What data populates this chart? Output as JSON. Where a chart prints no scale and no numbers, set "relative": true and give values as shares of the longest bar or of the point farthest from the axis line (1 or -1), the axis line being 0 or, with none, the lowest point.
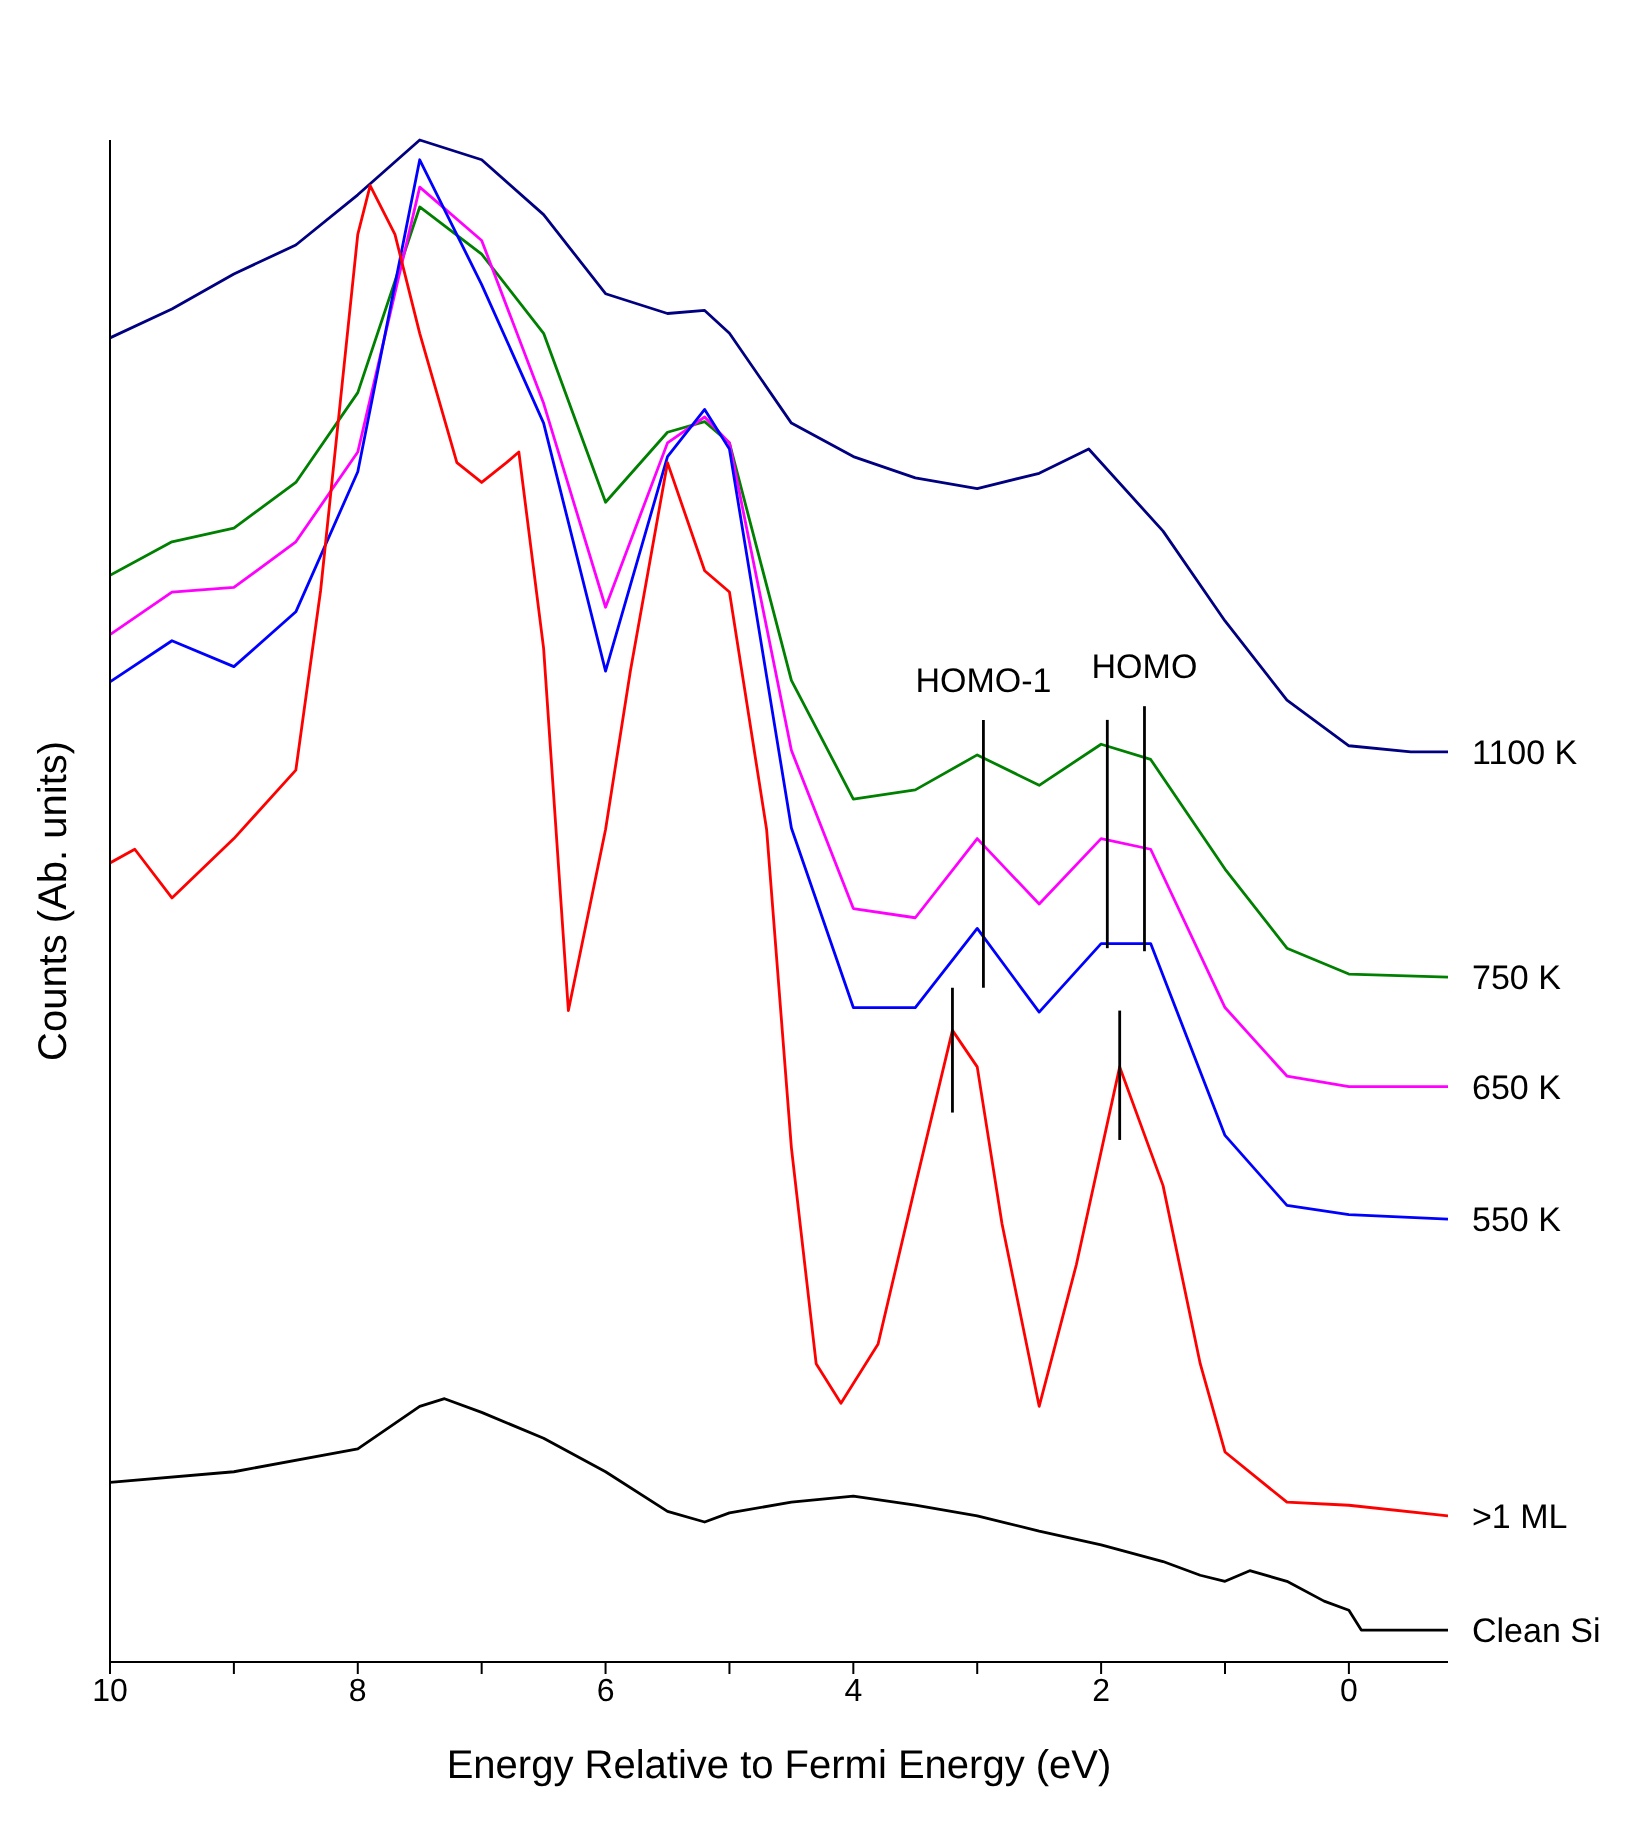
{
  "chart_data": {
    "type": "line",
    "relative": true,
    "xlabel": "Energy Relative to Fermi Energy (eV)",
    "ylabel": "Counts (Ab. units)",
    "xlim": [
      10,
      -0.8
    ],
    "xticks": [
      10,
      {
        "value": 9,
        "label": null
      },
      8,
      {
        "value": 7,
        "label": null
      },
      6,
      {
        "value": 5,
        "label": null
      },
      4,
      {
        "value": 3,
        "label": null
      },
      2,
      {
        "value": 1,
        "label": null
      },
      0
    ],
    "grid": false,
    "legend": false,
    "marker": "none",
    "line_style": "solid",
    "tick_labels": "x",
    "annotations": [
      {
        "text": "HOMO-1",
        "x": 2.95,
        "y": 0.619
      },
      {
        "text": "HOMO",
        "x": 1.65,
        "y": 0.628
      }
    ],
    "series": [
      {
        "name": "1100 K",
        "color": "#000080",
        "x": [
          10,
          9.5,
          9,
          8.5,
          8,
          7.5,
          7,
          6.5,
          6,
          5.5,
          5.2,
          5,
          4.5,
          4,
          3.5,
          3,
          2.5,
          2.1,
          1.5,
          1,
          0.5,
          0,
          -0.5,
          -0.8
        ],
        "values": [
          0.87,
          0.889,
          0.912,
          0.931,
          0.964,
          1.0,
          0.987,
          0.951,
          0.899,
          0.886,
          0.888,
          0.873,
          0.814,
          0.792,
          0.778,
          0.771,
          0.781,
          0.797,
          0.743,
          0.684,
          0.632,
          0.602,
          0.598,
          0.598
        ]
      },
      {
        "name": "750 K",
        "color": "#008000",
        "x": [
          10,
          9.5,
          9,
          8.5,
          8,
          7.5,
          7,
          6.5,
          6,
          5.5,
          5.2,
          5,
          4.5,
          4,
          3.5,
          3,
          2.5,
          2,
          1.6,
          1,
          0.5,
          0,
          -0.8
        ],
        "values": [
          0.714,
          0.736,
          0.745,
          0.775,
          0.834,
          0.956,
          0.925,
          0.873,
          0.762,
          0.808,
          0.815,
          0.801,
          0.645,
          0.567,
          0.573,
          0.596,
          0.576,
          0.603,
          0.593,
          0.521,
          0.469,
          0.452,
          0.45
        ]
      },
      {
        "name": "650 K",
        "color": "#ff00ff",
        "x": [
          10,
          9.5,
          9,
          8.5,
          8,
          7.5,
          7,
          6.5,
          6,
          5.5,
          5.2,
          5,
          4.5,
          4,
          3.5,
          3,
          2.5,
          2,
          1.6,
          1,
          0.5,
          0,
          -0.8
        ],
        "values": [
          0.675,
          0.703,
          0.706,
          0.736,
          0.795,
          0.969,
          0.934,
          0.827,
          0.693,
          0.801,
          0.818,
          0.801,
          0.599,
          0.495,
          0.489,
          0.541,
          0.498,
          0.541,
          0.534,
          0.43,
          0.385,
          0.378,
          0.378
        ]
      },
      {
        "name": "550 K",
        "color": "#0000ff",
        "x": [
          10,
          9.5,
          9,
          8.5,
          8,
          7.5,
          7,
          6.5,
          6,
          5.5,
          5.2,
          5,
          4.5,
          4,
          3.5,
          3,
          2.5,
          2,
          1.6,
          1,
          0.5,
          0,
          -0.8
        ],
        "values": [
          0.644,
          0.671,
          0.654,
          0.69,
          0.782,
          0.987,
          0.905,
          0.814,
          0.651,
          0.792,
          0.823,
          0.797,
          0.548,
          0.43,
          0.43,
          0.482,
          0.427,
          0.472,
          0.472,
          0.346,
          0.3,
          0.294,
          0.291
        ]
      },
      {
        "name": ">1 ML",
        "color": "#ff0000",
        "x": [
          10,
          9.8,
          9.5,
          9,
          8.5,
          8.3,
          8,
          7.9,
          7.7,
          7.5,
          7.2,
          7,
          6.8,
          6.7,
          6.5,
          6.3,
          6,
          5.8,
          5.5,
          5.2,
          5,
          4.7,
          4.5,
          4.3,
          4.1,
          3.8,
          3.5,
          3.2,
          3,
          2.8,
          2.5,
          2.2,
          1.85,
          1.5,
          1.2,
          1,
          0.5,
          0,
          -0.8
        ],
        "values": [
          0.525,
          0.534,
          0.502,
          0.541,
          0.586,
          0.704,
          0.938,
          0.97,
          0.938,
          0.873,
          0.788,
          0.775,
          0.788,
          0.795,
          0.666,
          0.428,
          0.547,
          0.651,
          0.788,
          0.717,
          0.703,
          0.547,
          0.338,
          0.196,
          0.17,
          0.209,
          0.313,
          0.415,
          0.391,
          0.288,
          0.168,
          0.261,
          0.391,
          0.313,
          0.196,
          0.138,
          0.105,
          0.103,
          0.096
        ]
      },
      {
        "name": "Clean Si",
        "color": "#000000",
        "x": [
          10,
          9,
          8,
          7.5,
          7.3,
          7,
          6.5,
          6,
          5.5,
          5.2,
          5,
          4.5,
          4,
          3.5,
          3,
          2.5,
          2,
          1.5,
          1.2,
          1,
          0.8,
          0.5,
          0.2,
          0,
          -0.1,
          -0.8
        ],
        "values": [
          0.118,
          0.125,
          0.14,
          0.168,
          0.173,
          0.164,
          0.147,
          0.125,
          0.099,
          0.092,
          0.098,
          0.105,
          0.109,
          0.103,
          0.096,
          0.086,
          0.077,
          0.066,
          0.057,
          0.053,
          0.06,
          0.053,
          0.04,
          0.034,
          0.021,
          0.021
        ]
      },
      {
        "color": "#000000",
        "x": [
          2.95,
          2.95
        ],
        "values": [
          0.619,
          0.443
        ]
      },
      {
        "color": "#000000",
        "x": [
          1.95,
          1.95
        ],
        "values": [
          0.619,
          0.469
        ]
      },
      {
        "color": "#000000",
        "x": [
          1.65,
          1.65
        ],
        "values": [
          0.628,
          0.467
        ]
      },
      {
        "color": "#000000",
        "x": [
          3.2,
          3.2
        ],
        "values": [
          0.443,
          0.361
        ]
      },
      {
        "color": "#000000",
        "x": [
          1.85,
          1.85
        ],
        "values": [
          0.428,
          0.343
        ]
      }
    ]
  }
}
